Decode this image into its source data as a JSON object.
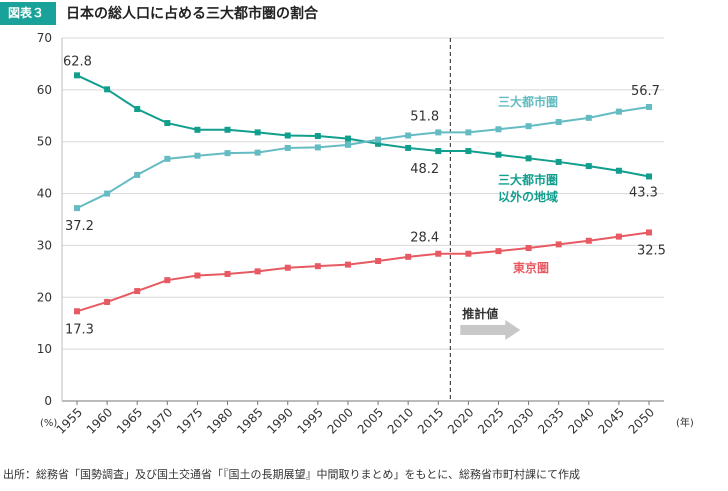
{
  "header": {
    "badge": "図表３",
    "title": "日本の総人口に占める三大都市圏の割合"
  },
  "source": "出所：総務省「国勢調査」及び国土交通省「『国土の長期展望』中間取りまとめ」をもとに、総務省市町村課にて作成",
  "chart_data": {
    "type": "line",
    "x": [
      1955,
      1960,
      1965,
      1970,
      1975,
      1980,
      1985,
      1990,
      1995,
      2000,
      2005,
      2010,
      2015,
      2020,
      2025,
      2030,
      2035,
      2040,
      2045,
      2050
    ],
    "x_tick_labels": [
      "1955",
      "1960",
      "1965",
      "1970",
      "1975",
      "1980",
      "1985",
      "1990",
      "1995",
      "2000",
      "2005",
      "2010",
      "2015",
      "2020",
      "2025",
      "2030",
      "2035",
      "2040",
      "2045",
      "2050"
    ],
    "ylim": [
      0,
      70
    ],
    "y_ticks": [
      0,
      10,
      20,
      30,
      40,
      50,
      60,
      70
    ],
    "y_unit": "(%)",
    "x_unit": "(年)",
    "divider_x": 2017,
    "projection_label": "推計値",
    "grid": "horizontal",
    "series": [
      {
        "name": "三大都市圏以外の地域",
        "legend_lines": [
          "三大都市圏",
          "以外の地域"
        ],
        "color": "#119e8d",
        "values": [
          62.8,
          60.1,
          56.3,
          53.6,
          52.3,
          52.3,
          51.8,
          51.2,
          51.1,
          50.6,
          49.6,
          48.8,
          48.2,
          48.2,
          47.5,
          46.8,
          46.1,
          45.3,
          44.4,
          43.3
        ]
      },
      {
        "name": "三大都市圏",
        "legend_lines": [
          "三大都市圏"
        ],
        "color": "#64bcc2",
        "values": [
          37.2,
          40.0,
          43.6,
          46.7,
          47.3,
          47.8,
          47.9,
          48.8,
          48.9,
          49.4,
          50.4,
          51.2,
          51.8,
          51.8,
          52.4,
          53.0,
          53.8,
          54.6,
          55.8,
          56.7
        ]
      },
      {
        "name": "東京圏",
        "legend_lines": [
          "東京圏"
        ],
        "color": "#e85a62",
        "values": [
          17.3,
          19.1,
          21.2,
          23.3,
          24.2,
          24.5,
          25.0,
          25.7,
          26.0,
          26.3,
          27.0,
          27.8,
          28.4,
          28.4,
          28.9,
          29.5,
          30.2,
          30.9,
          31.7,
          32.5
        ]
      }
    ],
    "annotations": [
      {
        "text": "62.8",
        "series": 0,
        "index": 0
      },
      {
        "text": "48.2",
        "series": 0,
        "index": 12
      },
      {
        "text": "43.3",
        "series": 0,
        "index": 19
      },
      {
        "text": "37.2",
        "series": 1,
        "index": 0
      },
      {
        "text": "51.8",
        "series": 1,
        "index": 12
      },
      {
        "text": "56.7",
        "series": 1,
        "index": 19
      },
      {
        "text": "17.3",
        "series": 2,
        "index": 0
      },
      {
        "text": "28.4",
        "series": 2,
        "index": 12
      },
      {
        "text": "32.5",
        "series": 2,
        "index": 19
      }
    ]
  }
}
